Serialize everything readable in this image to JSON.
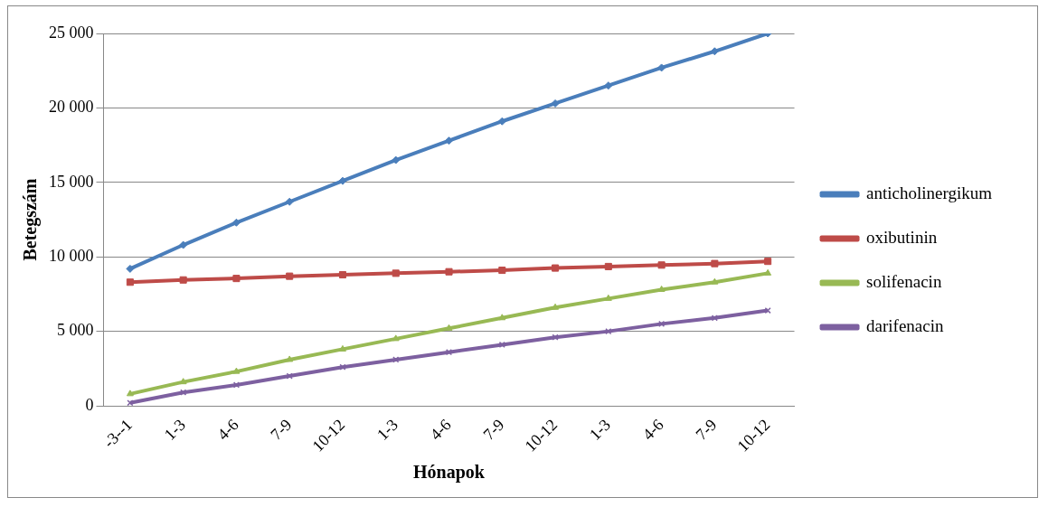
{
  "chart_data": {
    "type": "line",
    "xlabel": "Hónapok",
    "ylabel": "Betegszám",
    "categories": [
      "-3--1",
      "1-3",
      "4-6",
      "7-9",
      "10-12",
      "1-3",
      "4-6",
      "7-9",
      "10-12",
      "1-3",
      "4-6",
      "7-9",
      "10-12"
    ],
    "series": [
      {
        "name": "anticholinergikum",
        "color": "#4a7ebb",
        "marker": "diamond",
        "values": [
          9200,
          10800,
          12300,
          13700,
          15100,
          16500,
          17800,
          19100,
          20300,
          21500,
          22700,
          23800,
          25000
        ]
      },
      {
        "name": "oxibutinin",
        "color": "#be4b48",
        "marker": "square",
        "values": [
          8300,
          8450,
          8550,
          8700,
          8800,
          8900,
          9000,
          9100,
          9250,
          9350,
          9450,
          9550,
          9700
        ]
      },
      {
        "name": "solifenacin",
        "color": "#98b954",
        "marker": "triangle",
        "values": [
          800,
          1600,
          2300,
          3100,
          3800,
          4500,
          5200,
          5900,
          6600,
          7200,
          7800,
          8300,
          8900
        ]
      },
      {
        "name": "darifenacin",
        "color": "#7d60a0",
        "marker": "cross",
        "values": [
          200,
          900,
          1400,
          2000,
          2600,
          3100,
          3600,
          4100,
          4600,
          5000,
          5500,
          5900,
          6400
        ]
      }
    ],
    "ylim": [
      0,
      25000
    ],
    "yticks": [
      {
        "value": 0,
        "label": "0"
      },
      {
        "value": 5000,
        "label": "5 000"
      },
      {
        "value": 10000,
        "label": "10 000"
      },
      {
        "value": 15000,
        "label": "15 000"
      },
      {
        "value": 20000,
        "label": "20 000"
      },
      {
        "value": 25000,
        "label": "25 000"
      }
    ],
    "grid": "y",
    "legend": "right",
    "line_style": "solid"
  }
}
